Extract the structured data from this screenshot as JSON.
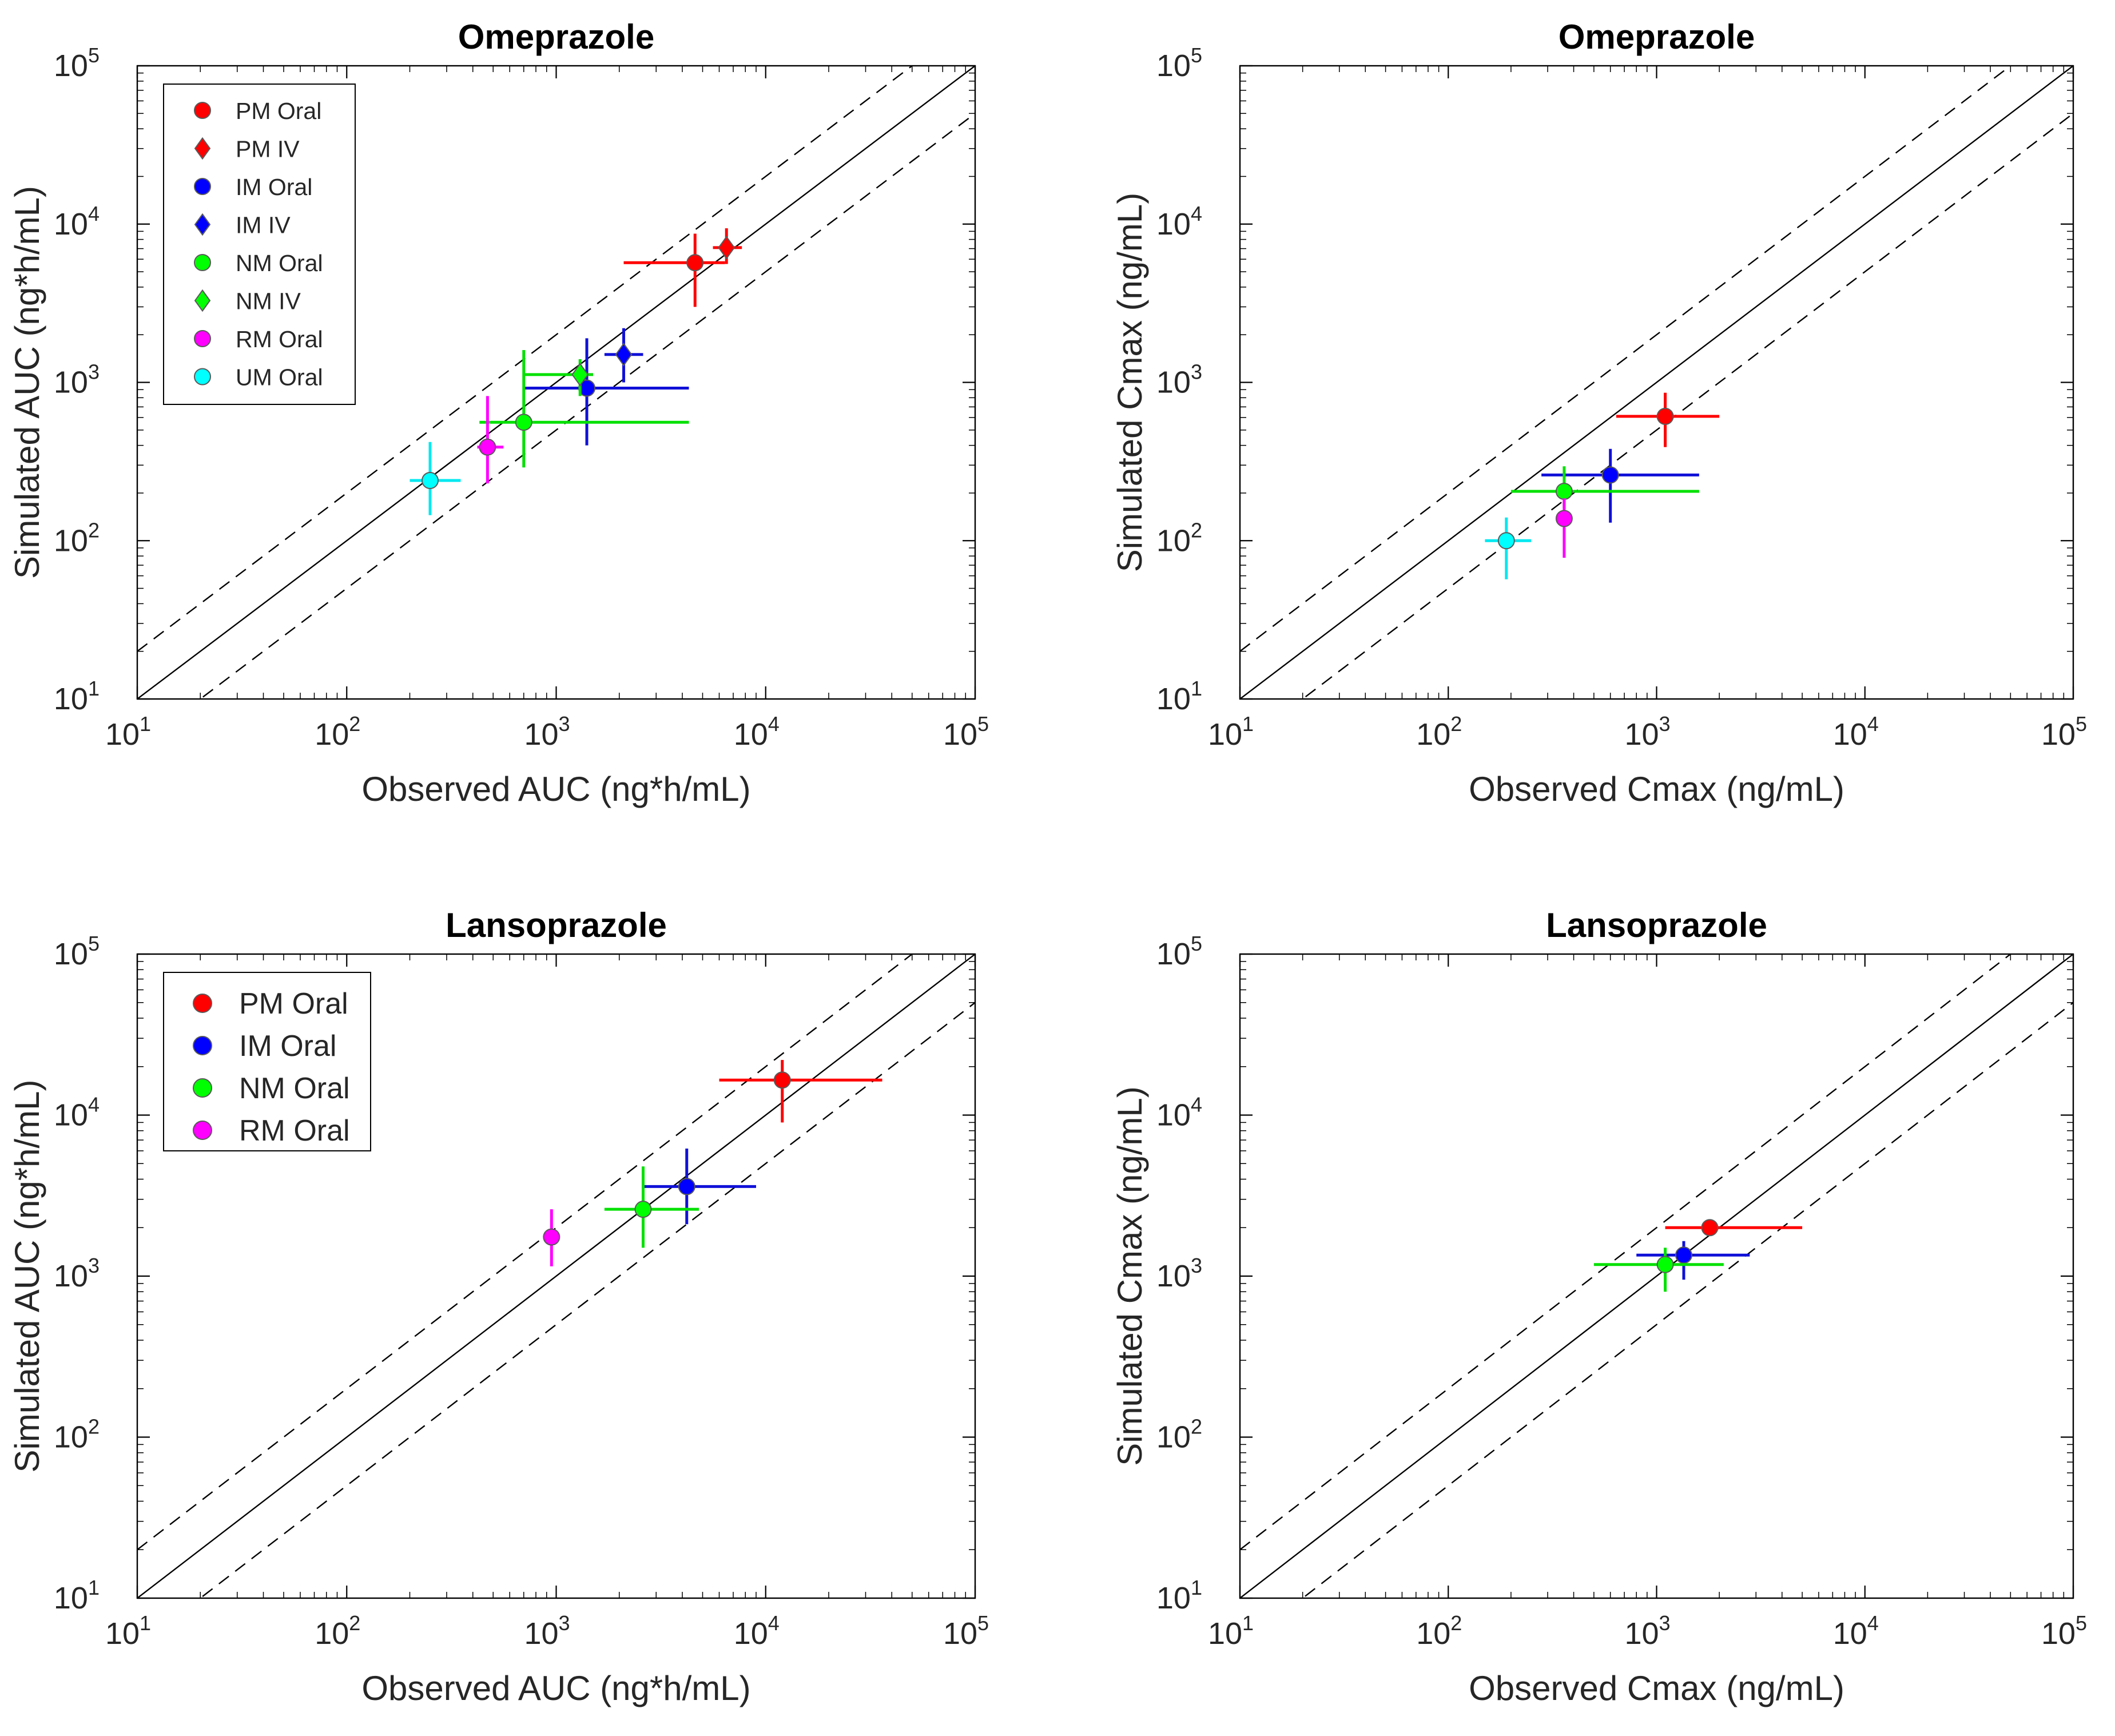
{
  "figure": {
    "marker_colors": {
      "PM": "#ff0000",
      "IM": "#0000ff",
      "NM": "#00ff00",
      "RM": "#ff00ff",
      "UM": "#00ffff"
    },
    "err_colors": {
      "PM": "#ff0000",
      "IM": "#1010d8",
      "NM": "#00e000",
      "RM": "#ff00ff",
      "UM": "#00e8f0"
    },
    "tick_base": "10",
    "tick_exponents": [
      "1",
      "2",
      "3",
      "4",
      "5"
    ]
  },
  "chart_data": [
    {
      "id": "omep-auc",
      "type": "scatter",
      "scale": "log",
      "title": "Omeprazole",
      "xlabel": "Observed AUC (ng*h/mL)",
      "ylabel": "Simulated AUC (ng*h/mL)",
      "xlim": [
        10,
        100000
      ],
      "ylim": [
        10,
        100000
      ],
      "reference_lines": {
        "unity": 1,
        "fold": 2
      },
      "legend": {
        "position": "top-left",
        "size": "small",
        "entries": [
          {
            "label": "PM Oral",
            "group": "PM",
            "marker": "circle"
          },
          {
            "label": "PM IV",
            "group": "PM",
            "marker": "diamond"
          },
          {
            "label": "IM Oral",
            "group": "IM",
            "marker": "circle"
          },
          {
            "label": "IM IV",
            "group": "IM",
            "marker": "diamond"
          },
          {
            "label": "NM Oral",
            "group": "NM",
            "marker": "circle"
          },
          {
            "label": "NM IV",
            "group": "NM",
            "marker": "diamond"
          },
          {
            "label": "RM Oral",
            "group": "RM",
            "marker": "circle"
          },
          {
            "label": "UM Oral",
            "group": "UM",
            "marker": "circle"
          }
        ]
      },
      "points": [
        {
          "name": "PM Oral",
          "group": "PM",
          "marker": "circle",
          "x": 4600,
          "y": 5700,
          "xerr": [
            2100,
            6400
          ],
          "yerr": [
            3000,
            8700
          ]
        },
        {
          "name": "PM IV",
          "group": "PM",
          "marker": "diamond",
          "x": 6500,
          "y": 7100,
          "xerr": [
            5600,
            7700
          ],
          "yerr": [
            5600,
            9400
          ]
        },
        {
          "name": "IM Oral",
          "group": "IM",
          "marker": "circle",
          "x": 1400,
          "y": 920,
          "xerr": [
            700,
            4300
          ],
          "yerr": [
            400,
            1900
          ]
        },
        {
          "name": "IM IV",
          "group": "IM",
          "marker": "diamond",
          "x": 2100,
          "y": 1500,
          "xerr": [
            1700,
            2600
          ],
          "yerr": [
            1000,
            2200
          ]
        },
        {
          "name": "NM Oral",
          "group": "NM",
          "marker": "circle",
          "x": 700,
          "y": 560,
          "xerr": [
            430,
            4300
          ],
          "yerr": [
            290,
            1600
          ]
        },
        {
          "name": "NM IV",
          "group": "NM",
          "marker": "diamond",
          "x": 1300,
          "y": 1120,
          "xerr": [
            700,
            1500
          ],
          "yerr": [
            820,
            1400
          ]
        },
        {
          "name": "RM Oral",
          "group": "RM",
          "marker": "circle",
          "x": 470,
          "y": 390,
          "xerr": [
            420,
            560
          ],
          "yerr": [
            230,
            820
          ]
        },
        {
          "name": "UM Oral",
          "group": "UM",
          "marker": "circle",
          "x": 250,
          "y": 240,
          "xerr": [
            200,
            350
          ],
          "yerr": [
            145,
            420
          ]
        }
      ]
    },
    {
      "id": "omep-cmax",
      "type": "scatter",
      "scale": "log",
      "title": "Omeprazole",
      "xlabel": "Observed Cmax (ng/mL)",
      "ylabel": "Simulated Cmax (ng/mL)",
      "xlim": [
        10,
        100000
      ],
      "ylim": [
        10,
        100000
      ],
      "reference_lines": {
        "unity": 1,
        "fold": 2
      },
      "legend": null,
      "points": [
        {
          "name": "PM Oral",
          "group": "PM",
          "marker": "circle",
          "x": 1100,
          "y": 610,
          "xerr": [
            640,
            2000
          ],
          "yerr": [
            390,
            860
          ]
        },
        {
          "name": "IM Oral",
          "group": "IM",
          "marker": "circle",
          "x": 600,
          "y": 260,
          "xerr": [
            280,
            1600
          ],
          "yerr": [
            130,
            380
          ]
        },
        {
          "name": "NM Oral",
          "group": "NM",
          "marker": "circle",
          "x": 360,
          "y": 205,
          "xerr": [
            200,
            1600
          ],
          "yerr": [
            160,
            295
          ]
        },
        {
          "name": "RM Oral",
          "group": "RM",
          "marker": "circle",
          "x": 360,
          "y": 138,
          "xerr": [
            350,
            370
          ],
          "yerr": [
            78,
            185
          ]
        },
        {
          "name": "UM Oral",
          "group": "UM",
          "marker": "circle",
          "x": 190,
          "y": 100,
          "xerr": [
            150,
            250
          ],
          "yerr": [
            57,
            140
          ]
        }
      ]
    },
    {
      "id": "lanso-auc",
      "type": "scatter",
      "scale": "log",
      "title": "Lansoprazole",
      "xlabel": "Observed AUC (ng*h/mL)",
      "ylabel": "Simulated AUC (ng*h/mL)",
      "xlim": [
        10,
        100000
      ],
      "ylim": [
        10,
        100000
      ],
      "reference_lines": {
        "unity": 1,
        "fold": 2
      },
      "legend": {
        "position": "top-left",
        "size": "large",
        "entries": [
          {
            "label": "PM Oral",
            "group": "PM",
            "marker": "circle"
          },
          {
            "label": "IM Oral",
            "group": "IM",
            "marker": "circle"
          },
          {
            "label": "NM Oral",
            "group": "NM",
            "marker": "circle"
          },
          {
            "label": "RM Oral",
            "group": "RM",
            "marker": "circle"
          }
        ]
      },
      "points": [
        {
          "name": "PM Oral",
          "group": "PM",
          "marker": "circle",
          "x": 12000,
          "y": 16500,
          "xerr": [
            6000,
            36000
          ],
          "yerr": [
            9000,
            22000
          ]
        },
        {
          "name": "IM Oral",
          "group": "IM",
          "marker": "circle",
          "x": 4200,
          "y": 3600,
          "xerr": [
            2600,
            9000
          ],
          "yerr": [
            2100,
            6200
          ]
        },
        {
          "name": "NM Oral",
          "group": "NM",
          "marker": "circle",
          "x": 2600,
          "y": 2600,
          "xerr": [
            1700,
            4800
          ],
          "yerr": [
            1500,
            4800
          ]
        },
        {
          "name": "RM Oral",
          "group": "RM",
          "marker": "circle",
          "x": 950,
          "y": 1750,
          "xerr": [
            900,
            1000
          ],
          "yerr": [
            1150,
            2600
          ]
        }
      ]
    },
    {
      "id": "lanso-cmax",
      "type": "scatter",
      "scale": "log",
      "title": "Lansoprazole",
      "xlabel": "Observed Cmax (ng/mL)",
      "ylabel": "Simulated Cmax (ng/mL)",
      "xlim": [
        10,
        100000
      ],
      "ylim": [
        10,
        100000
      ],
      "reference_lines": {
        "unity": 1,
        "fold": 2
      },
      "legend": null,
      "points": [
        {
          "name": "PM Oral",
          "group": "PM",
          "marker": "circle",
          "x": 1800,
          "y": 2000,
          "xerr": [
            1100,
            5000
          ],
          "yerr": [
            1950,
            2050
          ]
        },
        {
          "name": "IM Oral",
          "group": "IM",
          "marker": "circle",
          "x": 1350,
          "y": 1350,
          "xerr": [
            800,
            2800
          ],
          "yerr": [
            950,
            1650
          ]
        },
        {
          "name": "NM Oral",
          "group": "NM",
          "marker": "circle",
          "x": 1100,
          "y": 1180,
          "xerr": [
            500,
            2100
          ],
          "yerr": [
            800,
            1500
          ]
        }
      ]
    }
  ]
}
